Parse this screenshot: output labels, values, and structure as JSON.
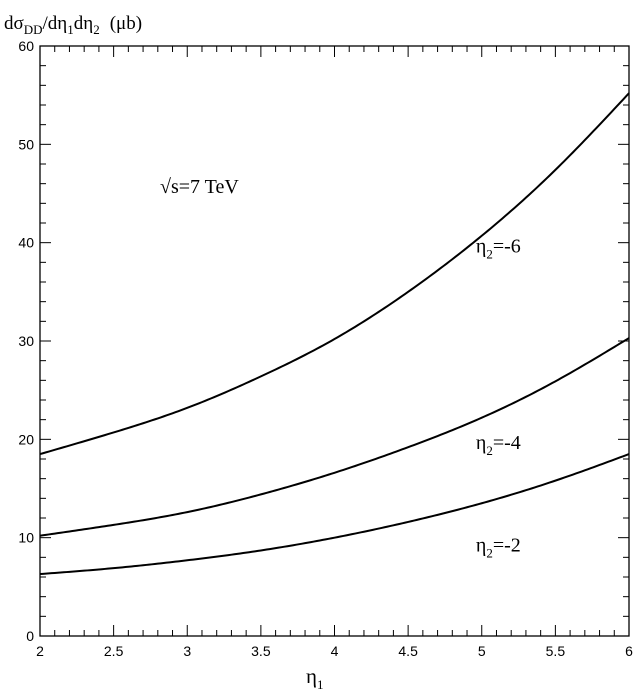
{
  "chart_data": {
    "type": "line",
    "title": "",
    "ylabel": "dσDD/dη1dη2 (μb)",
    "ylabel_parts": {
      "a": "dσ",
      "b": "DD",
      "c": "/dη",
      "d": "1",
      "e": "dη",
      "f": "2",
      "g": "(μb)"
    },
    "xlabel": "η1",
    "xlabel_parts": {
      "a": "η",
      "b": "1"
    },
    "annotation": "√s=7 TeV",
    "xlim": [
      2,
      6
    ],
    "ylim": [
      0,
      60
    ],
    "x_ticks": [
      2,
      2.5,
      3,
      3.5,
      4,
      4.5,
      5,
      5.5,
      6
    ],
    "x_tick_labels": [
      "2",
      "2.5",
      "3",
      "3.5",
      "4",
      "4.5",
      "5",
      "5.5",
      "6"
    ],
    "y_ticks": [
      0,
      10,
      20,
      30,
      40,
      50,
      60
    ],
    "y_tick_labels": [
      "0",
      "10",
      "20",
      "30",
      "40",
      "50",
      "60"
    ],
    "x": [
      2.0,
      2.5,
      3.0,
      3.5,
      4.0,
      4.5,
      5.0,
      5.5,
      6.0
    ],
    "series": [
      {
        "label_prefix": "η",
        "label_sub": "2",
        "label_suffix": "=-6",
        "label_x": 4.96,
        "label_y": 39.0,
        "values": [
          18.5,
          20.7,
          23.2,
          26.4,
          30.2,
          35.0,
          40.7,
          47.4,
          55.2
        ]
      },
      {
        "label_prefix": "η",
        "label_sub": "2",
        "label_suffix": "=-4",
        "label_x": 4.96,
        "label_y": 19.0,
        "values": [
          10.2,
          11.3,
          12.6,
          14.4,
          16.6,
          19.2,
          22.2,
          25.9,
          30.3
        ]
      },
      {
        "label_prefix": "η",
        "label_sub": "2",
        "label_suffix": "=-2",
        "label_x": 4.96,
        "label_y": 8.6,
        "values": [
          6.3,
          6.9,
          7.7,
          8.7,
          10.0,
          11.6,
          13.5,
          15.8,
          18.5
        ]
      }
    ]
  }
}
